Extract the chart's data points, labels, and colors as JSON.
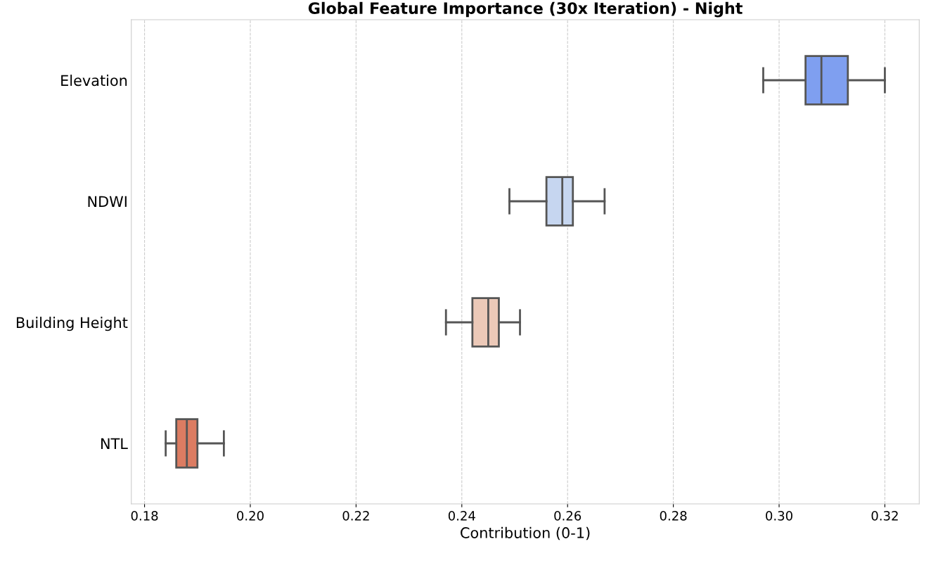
{
  "chart_data": {
    "type": "box",
    "orientation": "horizontal",
    "title": "Global Feature Importance (30x Iteration) - Night",
    "xlabel": "Contribution (0-1)",
    "categories": [
      "Elevation",
      "NDWI",
      "Building Height",
      "NTL"
    ],
    "boxes": [
      {
        "low": 0.297,
        "q1": 0.305,
        "median": 0.308,
        "q3": 0.313,
        "high": 0.32
      },
      {
        "low": 0.249,
        "q1": 0.256,
        "median": 0.259,
        "q3": 0.261,
        "high": 0.267
      },
      {
        "low": 0.237,
        "q1": 0.242,
        "median": 0.245,
        "q3": 0.247,
        "high": 0.251
      },
      {
        "low": 0.184,
        "q1": 0.186,
        "median": 0.188,
        "q3": 0.19,
        "high": 0.195
      }
    ],
    "colors": [
      "#7f9ff0",
      "#c6d6f0",
      "#ecc9b8",
      "#dc7c62"
    ],
    "xlim": [
      0.1775,
      0.3265
    ],
    "xticks": [
      {
        "value": 0.18,
        "label": "0.18"
      },
      {
        "value": 0.2,
        "label": "0.20"
      },
      {
        "value": 0.22,
        "label": "0.22"
      },
      {
        "value": 0.24,
        "label": "0.24"
      },
      {
        "value": 0.26,
        "label": "0.26"
      },
      {
        "value": 0.28,
        "label": "0.28"
      },
      {
        "value": 0.3,
        "label": "0.30"
      },
      {
        "value": 0.32,
        "label": "0.32"
      }
    ],
    "grid": "x"
  }
}
